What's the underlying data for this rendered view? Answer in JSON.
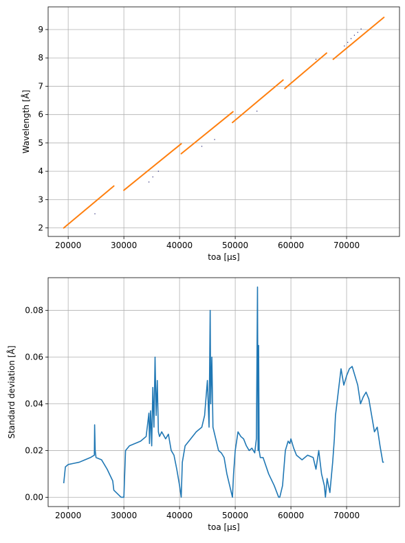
{
  "chart_data": [
    {
      "type": "line",
      "title": "",
      "xlabel": "toa [µs]",
      "ylabel": "Wavelength [Å]",
      "xlim": [
        16400,
        79500
      ],
      "ylim": [
        1.7,
        9.8
      ],
      "xticks": [
        20000,
        30000,
        40000,
        50000,
        60000,
        70000
      ],
      "yticks": [
        2,
        3,
        4,
        5,
        6,
        7,
        8,
        9
      ],
      "grid": true,
      "colors": {
        "fit": "#ff7f0e",
        "data": "#1a1a6e"
      },
      "series": [
        {
          "kind": "segments",
          "segments": [
            [
              [
                19200,
                2.0
              ],
              [
                28200,
                3.48
              ]
            ],
            [
              [
                30000,
                3.33
              ],
              [
                40300,
                4.97
              ]
            ],
            [
              [
                40300,
                4.62
              ],
              [
                49600,
                6.1
              ]
            ],
            [
              [
                49500,
                5.72
              ],
              [
                58600,
                7.22
              ]
            ],
            [
              [
                58900,
                6.92
              ],
              [
                66400,
                8.17
              ]
            ],
            [
              [
                67600,
                7.95
              ],
              [
                76700,
                9.43
              ]
            ]
          ]
        },
        {
          "kind": "points",
          "points": [
            [
              24800,
              2.5
            ],
            [
              34500,
              3.62
            ],
            [
              35200,
              3.8
            ],
            [
              36200,
              4.0
            ],
            [
              44000,
              4.88
            ],
            [
              46300,
              5.12
            ],
            [
              53900,
              6.12
            ],
            [
              64500,
              7.95
            ],
            [
              69600,
              8.42
            ],
            [
              70200,
              8.55
            ],
            [
              70800,
              8.68
            ],
            [
              71400,
              8.8
            ],
            [
              72000,
              8.9
            ],
            [
              72600,
              9.02
            ]
          ]
        }
      ]
    },
    {
      "type": "line",
      "title": "",
      "xlabel": "toa [µs]",
      "ylabel": "Standard deviation [Å]",
      "xlim": [
        16400,
        79500
      ],
      "ylim": [
        -0.004,
        0.094
      ],
      "xticks": [
        20000,
        30000,
        40000,
        50000,
        60000,
        70000
      ],
      "yticks": [
        0.0,
        0.02,
        0.04,
        0.06,
        0.08
      ],
      "ytick_labels": [
        "0.00",
        "0.02",
        "0.04",
        "0.06",
        "0.08"
      ],
      "grid": true,
      "colors": {
        "line": "#1f77b4"
      },
      "series": [
        {
          "x": [
            19200,
            19500,
            20000,
            21000,
            22000,
            23000,
            24000,
            24700,
            24750,
            24850,
            25000,
            26000,
            27000,
            28000,
            28200,
            29500,
            30000,
            30300,
            31000,
            32000,
            33000,
            34000,
            34500,
            34600,
            34800,
            35000,
            35200,
            35400,
            35600,
            35800,
            36000,
            36200,
            36400,
            36800,
            37500,
            38000,
            38500,
            39000,
            39500,
            40000,
            40300,
            40500,
            41000,
            42000,
            43000,
            44000,
            44500,
            45000,
            45300,
            45500,
            45600,
            45800,
            46000,
            46500,
            47000,
            47500,
            48000,
            48500,
            49000,
            49500,
            49700,
            50000,
            50500,
            51000,
            51500,
            52000,
            52500,
            53000,
            53500,
            53800,
            54000,
            54100,
            54200,
            54300,
            54500,
            55000,
            56000,
            57000,
            57800,
            58000,
            58500,
            59000,
            59500,
            59800,
            60000,
            60500,
            61000,
            62000,
            63000,
            64000,
            64500,
            65000,
            65500,
            66000,
            66200,
            66500,
            67000,
            67500,
            67800,
            68000,
            68500,
            69000,
            69500,
            70000,
            70500,
            71000,
            71500,
            72000,
            72500,
            73000,
            73500,
            74000,
            74500,
            75000,
            75500,
            76000,
            76500,
            76700
          ],
          "y": [
            0.006,
            0.013,
            0.014,
            0.0145,
            0.015,
            0.016,
            0.017,
            0.018,
            0.031,
            0.02,
            0.017,
            0.016,
            0.012,
            0.007,
            0.003,
            0.0,
            0.0,
            0.02,
            0.022,
            0.023,
            0.024,
            0.026,
            0.036,
            0.023,
            0.037,
            0.022,
            0.047,
            0.03,
            0.06,
            0.035,
            0.05,
            0.028,
            0.026,
            0.028,
            0.025,
            0.027,
            0.02,
            0.018,
            0.012,
            0.005,
            0.0,
            0.015,
            0.022,
            0.025,
            0.028,
            0.03,
            0.035,
            0.05,
            0.03,
            0.08,
            0.04,
            0.06,
            0.03,
            0.025,
            0.02,
            0.019,
            0.017,
            0.01,
            0.005,
            0.0,
            0.01,
            0.02,
            0.028,
            0.026,
            0.025,
            0.022,
            0.02,
            0.021,
            0.019,
            0.025,
            0.09,
            0.02,
            0.065,
            0.02,
            0.017,
            0.017,
            0.01,
            0.005,
            0.0,
            0.0,
            0.005,
            0.02,
            0.024,
            0.023,
            0.025,
            0.021,
            0.018,
            0.016,
            0.018,
            0.017,
            0.012,
            0.02,
            0.01,
            0.005,
            0.0,
            0.008,
            0.002,
            0.015,
            0.025,
            0.035,
            0.045,
            0.055,
            0.048,
            0.052,
            0.055,
            0.056,
            0.052,
            0.048,
            0.04,
            0.043,
            0.045,
            0.042,
            0.035,
            0.028,
            0.03,
            0.022,
            0.015,
            0.015
          ]
        }
      ]
    }
  ]
}
